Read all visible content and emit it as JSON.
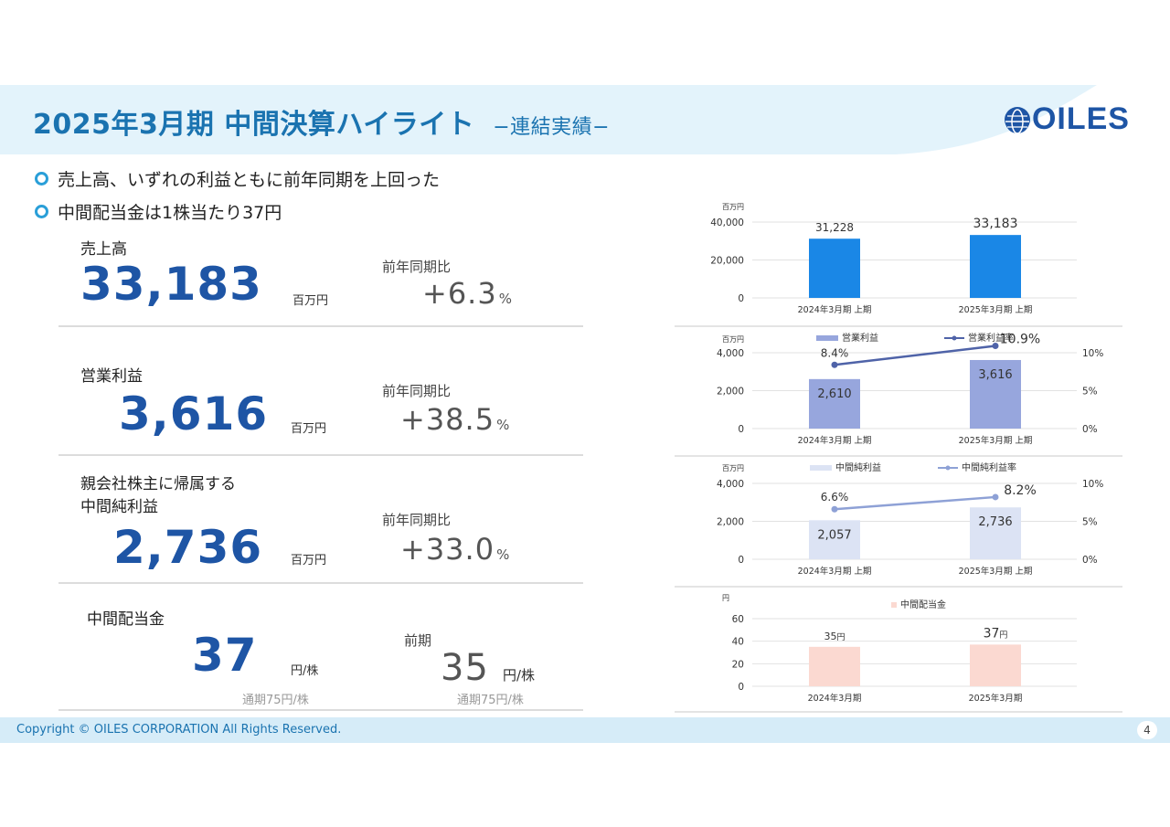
{
  "header": {
    "title": "2025年3月期 中間決算ハイライト",
    "subtitle": "−連結実績−",
    "logo_text": "OILES"
  },
  "bullets": [
    "売上高、いずれの利益ともに前年同期を上回った",
    "中間配当金は1株当たり37円"
  ],
  "metrics": {
    "sales": {
      "label": "売上高",
      "value": "33,183",
      "unit": "百万円",
      "cmp_label": "前年同期比",
      "cmp_value": "+6.3",
      "cmp_unit": "%"
    },
    "op": {
      "label": "営業利益",
      "value": "3,616",
      "unit": "百万円",
      "cmp_label": "前年同期比",
      "cmp_value": "+38.5",
      "cmp_unit": "%"
    },
    "net": {
      "label_line1": "親会社株主に帰属する",
      "label_line2": "中間純利益",
      "value": "2,736",
      "unit": "百万円",
      "cmp_label": "前年同期比",
      "cmp_value": "+33.0",
      "cmp_unit": "%"
    },
    "div": {
      "label": "中間配当金",
      "value": "37",
      "unit": "円/株",
      "sub": "通期75円/株",
      "prev_label": "前期",
      "prev_value": "35",
      "prev_unit": "円/株",
      "prev_sub": "通期75円/株"
    }
  },
  "footer": {
    "copyright": "Copyright © OILES CORPORATION All Rights Reserved.",
    "page": "4"
  },
  "chart_data": [
    {
      "type": "bar",
      "unit_label": "百万円",
      "categories": [
        "2024年3月期 上期",
        "2025年3月期 上期"
      ],
      "values": [
        31228,
        33183
      ],
      "value_labels": [
        "31,228",
        "33,183"
      ],
      "ylim": [
        0,
        40000
      ],
      "yticks": [
        "0",
        "20,000",
        "40,000"
      ],
      "color": "#1a87e6"
    },
    {
      "type": "bar",
      "unit_label": "百万円",
      "categories": [
        "2024年3月期 上期",
        "2025年3月期 上期"
      ],
      "series": [
        {
          "name": "営業利益",
          "kind": "bar",
          "values": [
            2610,
            3616
          ],
          "value_labels": [
            "2,610",
            "3,616"
          ],
          "color": "#97a6dd"
        },
        {
          "name": "営業利益率",
          "kind": "line",
          "axis": "right",
          "values": [
            8.4,
            10.9
          ],
          "value_labels": [
            "8.4%",
            "10.9%"
          ],
          "color": "#4f63a8"
        }
      ],
      "ylim": [
        0,
        4000
      ],
      "yticks": [
        "0",
        "2,000",
        "4,000"
      ],
      "y2lim": [
        0,
        10
      ],
      "y2ticks": [
        "0%",
        "5%",
        "10%"
      ]
    },
    {
      "type": "bar",
      "unit_label": "百万円",
      "categories": [
        "2024年3月期 上期",
        "2025年3月期 上期"
      ],
      "series": [
        {
          "name": "中間純利益",
          "kind": "bar",
          "values": [
            2057,
            2736
          ],
          "value_labels": [
            "2,057",
            "2,736"
          ],
          "color": "#dce3f4"
        },
        {
          "name": "中間純利益率",
          "kind": "line",
          "axis": "right",
          "values": [
            6.6,
            8.2
          ],
          "value_labels": [
            "6.6%",
            "8.2%"
          ],
          "color": "#8ea1d6"
        }
      ],
      "ylim": [
        0,
        4000
      ],
      "yticks": [
        "0",
        "2,000",
        "4,000"
      ],
      "y2lim": [
        0,
        10
      ],
      "y2ticks": [
        "0%",
        "5%",
        "10%"
      ]
    },
    {
      "type": "bar",
      "unit_label": "円",
      "categories": [
        "2024年3月期",
        "2025年3月期"
      ],
      "series": [
        {
          "name": "中間配当金",
          "kind": "bar",
          "values": [
            35,
            37
          ],
          "value_nums": [
            "35",
            "37"
          ],
          "value_suffix": "円",
          "color": "#fbd9d1"
        }
      ],
      "ylim": [
        0,
        60
      ],
      "yticks": [
        "0",
        "20",
        "40",
        "60"
      ]
    }
  ]
}
